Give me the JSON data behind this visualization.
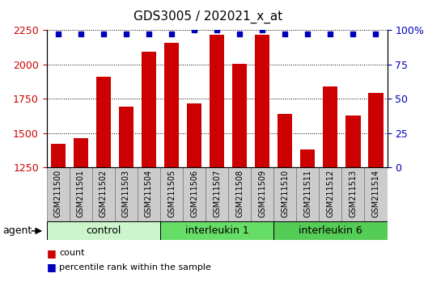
{
  "title": "GDS3005 / 202021_x_at",
  "samples": [
    "GSM211500",
    "GSM211501",
    "GSM211502",
    "GSM211503",
    "GSM211504",
    "GSM211505",
    "GSM211506",
    "GSM211507",
    "GSM211508",
    "GSM211509",
    "GSM211510",
    "GSM211511",
    "GSM211512",
    "GSM211513",
    "GSM211514"
  ],
  "counts": [
    1420,
    1465,
    1910,
    1690,
    2095,
    2155,
    1715,
    2215,
    2005,
    2215,
    1640,
    1380,
    1840,
    1625,
    1790
  ],
  "percentiles": [
    97,
    97,
    97,
    97,
    97,
    97,
    100,
    100,
    97,
    100,
    97,
    97,
    97,
    97,
    97
  ],
  "groups": [
    {
      "label": "control",
      "start": 0,
      "end": 5,
      "color": "#ccf5cc"
    },
    {
      "label": "interleukin 1",
      "start": 5,
      "end": 10,
      "color": "#66dd66"
    },
    {
      "label": "interleukin 6",
      "start": 10,
      "end": 15,
      "color": "#55cc55"
    }
  ],
  "bar_color": "#cc0000",
  "percentile_color": "#0000bb",
  "left_axis_color": "#cc0000",
  "right_axis_color": "#0000bb",
  "ylim_left": [
    1250,
    2250
  ],
  "ylim_right": [
    0,
    100
  ],
  "yticks_left": [
    1250,
    1500,
    1750,
    2000,
    2250
  ],
  "yticks_right": [
    0,
    25,
    50,
    75,
    100
  ],
  "legend_count": "count",
  "legend_percentile": "percentile rank within the sample",
  "bar_width": 0.65,
  "title_fontsize": 11,
  "tick_label_fontsize": 7,
  "group_label_fontsize": 9,
  "legend_fontsize": 8,
  "agent_label": "agent"
}
